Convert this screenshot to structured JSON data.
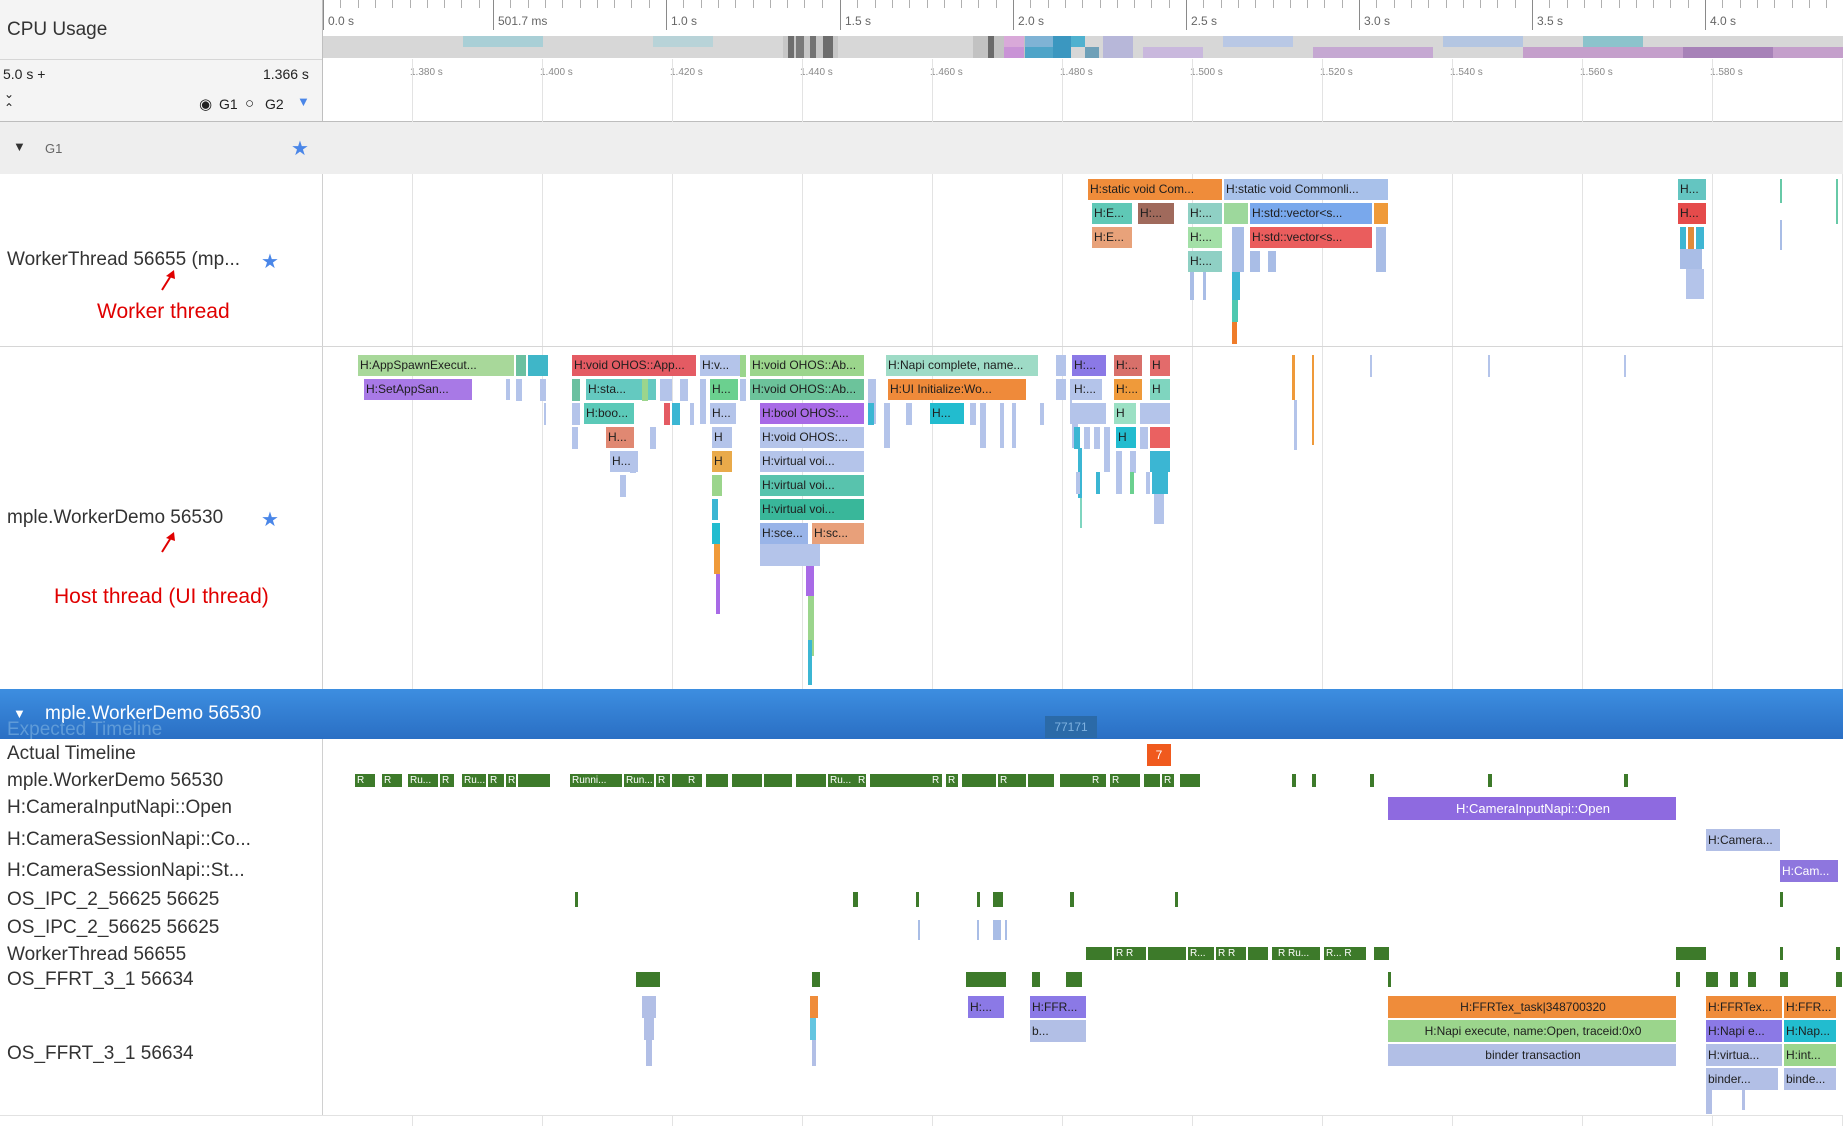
{
  "header": {
    "cpu_usage_label": "CPU Usage",
    "range_prefix": "5.0 s +",
    "range_value": "1.366 s",
    "g1_label": "G1",
    "g2_label": "G2",
    "top_ticks": [
      "0.0 s",
      "501.7 ms",
      "1.0 s",
      "1.5 s",
      "2.0 s",
      "2.5 s",
      "3.0 s",
      "3.5 s",
      "4.0 s"
    ],
    "zoom_ticks": [
      "1.380 s",
      "1.400 s",
      "1.420 s",
      "1.440 s",
      "1.460 s",
      "1.480 s",
      "1.500 s",
      "1.520 s",
      "1.540 s",
      "1.560 s",
      "1.580 s"
    ]
  },
  "groups": {
    "g1_title": "G1",
    "process_title": "mple.WorkerDemo 56530"
  },
  "tracks": {
    "worker_thread": "WorkerThread 56655 (mp...",
    "host_thread": "mple.WorkerDemo 56530",
    "expected_timeline": "Expected Timeline",
    "actual_timeline": "Actual Timeline",
    "process_thread": "mple.WorkerDemo 56530",
    "camera_input_open": "H:CameraInputNapi::Open",
    "camera_session_co": "H:CameraSessionNapi::Co...",
    "camera_session_st": "H:CameraSessionNapi::St...",
    "os_ipc_a": "OS_IPC_2_56625 56625",
    "os_ipc_b": "OS_IPC_2_56625 56625",
    "worker_thread_2": "WorkerThread 56655",
    "os_ffrt_a": "OS_FFRT_3_1 56634",
    "os_ffrt_b": "OS_FFRT_3_1 56634"
  },
  "annotations": {
    "worker": "Worker thread",
    "host": "Host thread (UI thread)"
  },
  "frame_labels": {
    "expected": "77171",
    "actual": "7"
  },
  "slices": {
    "w1": "H:static void Com...",
    "w2": "H:static void Commonli...",
    "w3": "H:E...",
    "w4": "H:...",
    "w5": "H:...",
    "w6": "H:std::vector<s...",
    "w7": "H:E...",
    "w8": "H:...",
    "w9": "H:std::vector<s...",
    "w10": "H:...",
    "w11": "H...",
    "w12": "H...",
    "h1": "H:AppSpawnExecut...",
    "h2": "H:SetAppSan...",
    "h3": "H:void OHOS::App...",
    "h4": "H:v...",
    "h5": "H:void OHOS::Ab...",
    "h6": "H:Napi complete, name...",
    "h7": "H:...",
    "h8": "H:...",
    "h9": "H",
    "h10": "H:sta...",
    "h11": "H...",
    "h12": "H:void OHOS::Ab...",
    "h13": "H:UI Initialize:Wo...",
    "h14": "H:...",
    "h15": "H:...",
    "h16": "H",
    "h17": "H:boo...",
    "h18": "H...",
    "h19": "H:bool OHOS:...",
    "h20": "H...",
    "h21": "H",
    "h22": "H...",
    "h23": "H",
    "h24": "H:void OHOS:...",
    "h25": "H",
    "h26": "H...",
    "h27": "H",
    "h28": "H:virtual voi...",
    "h29": "H:virtual voi...",
    "h30": "H:virtual voi...",
    "h31": "H:sce...",
    "h32": "H:sc...",
    "cam_open": "H:CameraInputNapi::Open",
    "cam_co": "H:Camera...",
    "cam_st": "H:Cam...",
    "f1": "H:...",
    "f2": "H:FFR...",
    "f3": "b...",
    "f4": "H:FFRTex_task|348700320",
    "f5": "H:Napi execute, name:Open, traceid:0x0",
    "f6": "binder transaction",
    "f7": "H:FFRTex...",
    "f8": "H:FFR...",
    "f9": "H:Napi e...",
    "f10": "H:Nap...",
    "f11": "H:virtua...",
    "f12": "H:int...",
    "f13": "binder...",
    "f14": "binde..."
  },
  "runs": {
    "r": "R",
    "ru": "Ru...",
    "runni": "Runni...",
    "run": "Run..."
  },
  "colors": {
    "accent_blue": "#2d7fd8",
    "star_blue": "#4a86e8",
    "annotation_red": "#e00000",
    "running_green": "#3d7a2a"
  }
}
